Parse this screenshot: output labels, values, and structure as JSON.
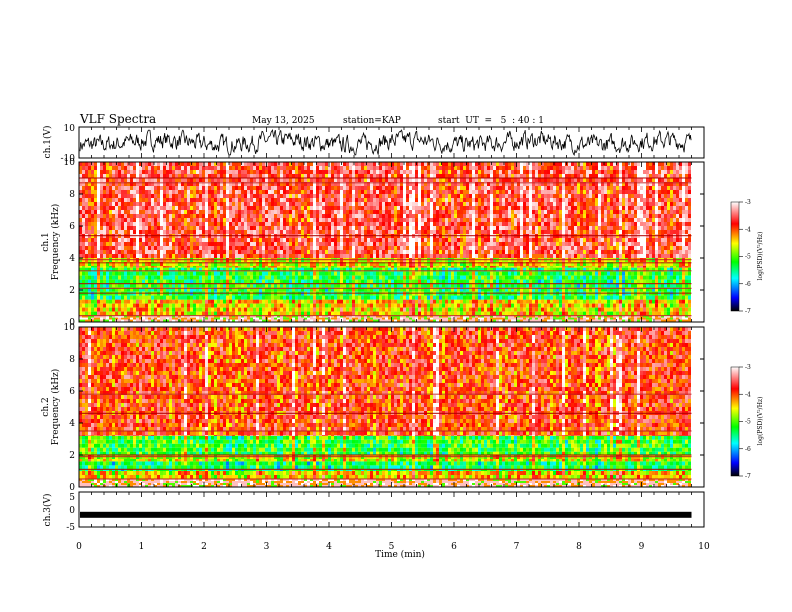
{
  "header": {
    "title": "VLF Spectra",
    "date": "May 13, 2025",
    "station": "station=KAP",
    "start": "start  UT  =   5  : 40 : 1"
  },
  "chart_data": [
    {
      "type": "line",
      "name": "ch1-waveform",
      "ylabel": "ch.1(V)",
      "ylim": [
        -10,
        10
      ],
      "yticks": [
        "10",
        "-10"
      ],
      "xlim": [
        0,
        10
      ],
      "data_extent_min": 9.8,
      "description_values": "noisy waveform oscillating roughly between -7 and 7 V"
    },
    {
      "type": "heatmap",
      "name": "ch1-spectrogram",
      "ylabel_top": "ch.1",
      "ylabel": "Frequency (kHz)",
      "ylim": [
        0,
        10
      ],
      "yticks": [
        "0",
        "2",
        "4",
        "6",
        "8",
        "10"
      ],
      "xlim": [
        0,
        10
      ],
      "bands": [
        {
          "from": 0,
          "to": 0.4,
          "level": "mixed"
        },
        {
          "from": 0.4,
          "to": 1.4,
          "level": -4.4
        },
        {
          "from": 1.4,
          "to": 3.4,
          "level": -5.2
        },
        {
          "from": 3.4,
          "to": 4.0,
          "level": -4.5
        },
        {
          "from": 4.0,
          "to": 10,
          "level": -3.6
        }
      ],
      "lines_khz": [
        0.4,
        1.8,
        2.1,
        2.4,
        3.2,
        3.7,
        3.9,
        5.4,
        8.7,
        9.0
      ]
    },
    {
      "type": "heatmap",
      "name": "ch2-spectrogram",
      "ylabel_top": "ch.2",
      "ylabel": "Frequency (kHz)",
      "ylim": [
        0,
        10
      ],
      "yticks": [
        "0",
        "2",
        "4",
        "6",
        "8",
        "10"
      ],
      "xlim": [
        0,
        10
      ],
      "bands": [
        {
          "from": 0,
          "to": 0.5,
          "level": "mixed"
        },
        {
          "from": 0.5,
          "to": 1.0,
          "level": -4.4
        },
        {
          "from": 1.0,
          "to": 1.6,
          "level": -5.3
        },
        {
          "from": 1.6,
          "to": 2.0,
          "level": -4.6
        },
        {
          "from": 2.0,
          "to": 3.2,
          "level": -5.1
        },
        {
          "from": 3.2,
          "to": 10,
          "level": -3.8
        }
      ],
      "lines_khz": [
        0.5,
        1.1,
        1.9,
        2.0,
        3.5,
        4.6,
        5.8
      ]
    },
    {
      "type": "line",
      "name": "ch3-waveform",
      "ylabel": "ch.3(V)",
      "ylim": [
        -5,
        5
      ],
      "yticks": [
        "5",
        "0",
        "-5"
      ],
      "xlim": [
        0,
        10
      ],
      "data_extent_min": 9.8,
      "description_values": "nearly constant level near -1.5 V with small ripple"
    }
  ],
  "xaxis": {
    "label": "Time (min)",
    "ticks": [
      "0",
      "1",
      "2",
      "3",
      "4",
      "5",
      "6",
      "7",
      "8",
      "9",
      "10"
    ]
  },
  "colorbar": {
    "label": "log(PSD)(V²/Hz)",
    "ticks": [
      "-3",
      "-4",
      "-5",
      "-6",
      "-7"
    ],
    "range": [
      -7,
      -3
    ],
    "stops": [
      "#000000",
      "#0000ff",
      "#00ffff",
      "#00ff00",
      "#ffff00",
      "#ff0000",
      "#ffffff"
    ]
  }
}
